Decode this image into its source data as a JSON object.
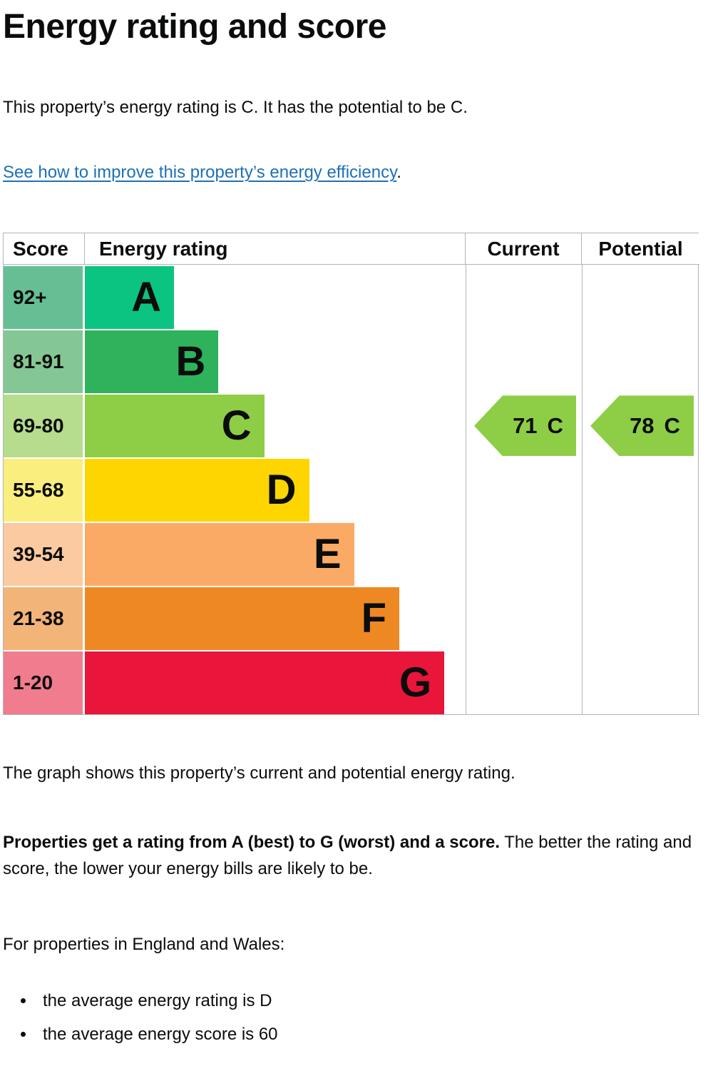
{
  "page": {
    "heading": "Energy rating and score",
    "intro": "This property’s energy rating is C. It has the potential to be C.",
    "improve_link_text": "See how to improve this property’s energy efficiency",
    "improve_link_suffix": ".",
    "graph_caption": "The graph shows this property’s current and potential energy rating.",
    "explainer_bold": "Properties get a rating from A (best) to G (worst) and a score.",
    "explainer_rest": " The better the rating and score, the lower your energy bills are likely to be.",
    "region_heading": "For properties in England and Wales:",
    "bullets": [
      "the average energy rating is D",
      "the average energy score is 60"
    ]
  },
  "chart": {
    "headers": {
      "score": "Score",
      "rating": "Energy rating",
      "current": "Current",
      "potential": "Potential"
    },
    "bands": [
      {
        "score": "92+",
        "letter": "A",
        "bar_color": "#0cc481",
        "score_bg": "#66bf94",
        "width_pct": 23.4
      },
      {
        "score": "81-91",
        "letter": "B",
        "bar_color": "#2eb25c",
        "score_bg": "#84c795",
        "width_pct": 35.1
      },
      {
        "score": "69-80",
        "letter": "C",
        "bar_color": "#8dce46",
        "score_bg": "#b6dc8e",
        "width_pct": 47.1
      },
      {
        "score": "55-68",
        "letter": "D",
        "bar_color": "#ffd500",
        "score_bg": "#faee7e",
        "width_pct": 58.9
      },
      {
        "score": "39-54",
        "letter": "E",
        "bar_color": "#fbaa65",
        "score_bg": "#fccaa0",
        "width_pct": 70.7
      },
      {
        "score": "21-38",
        "letter": "F",
        "bar_color": "#ee8823",
        "score_bg": "#f3b478",
        "width_pct": 82.6
      },
      {
        "score": "1-20",
        "letter": "G",
        "bar_color": "#e9153b",
        "score_bg": "#f07c8e",
        "width_pct": 94.4
      }
    ],
    "current": {
      "value": "71",
      "letter": "C",
      "arrow_color": "#8dce46"
    },
    "potential": {
      "value": "78",
      "letter": "C",
      "arrow_color": "#8dce46"
    }
  },
  "colors": {
    "text": "#0b0c0c",
    "link": "#1d70b8",
    "border": "#b1b4b6"
  },
  "chart_data": {
    "type": "bar",
    "title": "Energy rating and score",
    "categories": [
      "A",
      "B",
      "C",
      "D",
      "E",
      "F",
      "G"
    ],
    "score_ranges": [
      "92+",
      "81-91",
      "69-80",
      "55-68",
      "39-54",
      "21-38",
      "1-20"
    ],
    "bar_widths_relative_pct": [
      23.4,
      35.1,
      47.1,
      58.9,
      70.7,
      82.6,
      94.4
    ],
    "bar_colors": [
      "#0cc481",
      "#2eb25c",
      "#8dce46",
      "#ffd500",
      "#fbaa65",
      "#ee8823",
      "#e9153b"
    ],
    "columns": [
      "Score",
      "Energy rating",
      "Current",
      "Potential"
    ],
    "current": {
      "score": 71,
      "rating": "C"
    },
    "potential": {
      "score": 78,
      "rating": "C"
    },
    "arrow_color": "#8dce46",
    "grid": false,
    "legend_position": "none"
  }
}
